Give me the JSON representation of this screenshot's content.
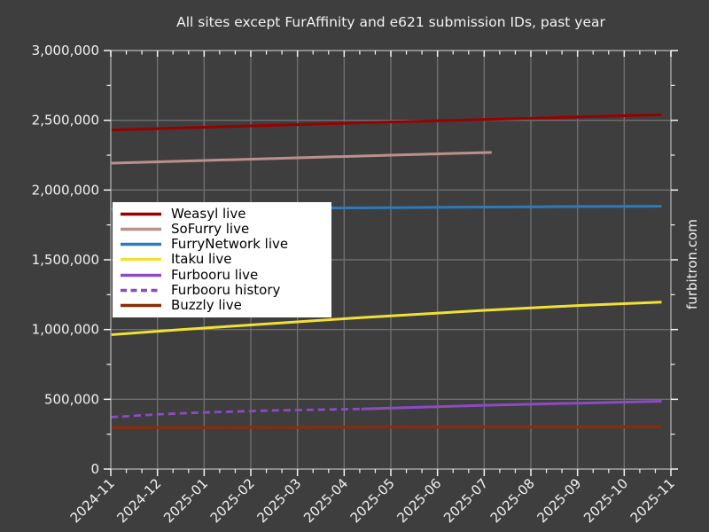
{
  "figure": {
    "watermark": "furbitron.com"
  },
  "colors": {
    "background": "#3E3E3E",
    "grid": "#6F6F6F",
    "spine": "#9B9B9B",
    "tick": "#F5F5F5",
    "text": "#F2F2F2",
    "legend_bg": "#FFFFFF",
    "legend_text": "#000000"
  },
  "chart_data": {
    "type": "line",
    "title": "All sites except FurAffinity and e621 submission IDs, past year",
    "x_note": "x values of points are month offsets from 2024-11 (0 = 2024-11, 12 = 2025-11)",
    "x_tick_labels": [
      "2024-11",
      "2024-12",
      "2025-01",
      "2025-02",
      "2025-03",
      "2025-04",
      "2025-05",
      "2025-06",
      "2025-07",
      "2025-08",
      "2025-09",
      "2025-10",
      "2025-11"
    ],
    "x_minor_ticks_per_interval": 2,
    "y_tick_values": [
      0,
      500000,
      1000000,
      1500000,
      2000000,
      2500000,
      3000000
    ],
    "y_tick_labels": [
      "0",
      "500,000",
      "1,000,000",
      "1,500,000",
      "2,000,000",
      "2,500,000",
      "3,000,000"
    ],
    "y_minor_step": 250000,
    "ylim": [
      0,
      3000000
    ],
    "xlim_months": [
      0,
      12
    ],
    "grid": true,
    "legend_position": "upper left inside plot",
    "series": [
      {
        "name": "Weasyl live",
        "color": "#990000",
        "style": "solid",
        "width": 3,
        "points": [
          [
            0,
            2430000
          ],
          [
            2,
            2450000
          ],
          [
            4,
            2469000
          ],
          [
            6,
            2488000
          ],
          [
            8,
            2506000
          ],
          [
            10,
            2524000
          ],
          [
            11.8,
            2540000
          ]
        ]
      },
      {
        "name": "SoFurry live",
        "color": "#BD8F8E",
        "style": "solid",
        "width": 3,
        "points": [
          [
            0,
            2193000
          ],
          [
            2,
            2212000
          ],
          [
            4,
            2231000
          ],
          [
            6,
            2250000
          ],
          [
            8.16,
            2270000
          ]
        ]
      },
      {
        "name": "FurryNetwork live",
        "color": "#2B7BBC",
        "style": "solid",
        "width": 3,
        "points": [
          [
            0,
            1862000
          ],
          [
            3,
            1868000
          ],
          [
            6,
            1874000
          ],
          [
            9,
            1880000
          ],
          [
            11.8,
            1884000
          ]
        ]
      },
      {
        "name": "Itaku live",
        "color": "#F2E035",
        "style": "solid",
        "width": 3,
        "points": [
          [
            0,
            963000
          ],
          [
            1.5,
            1000000
          ],
          [
            3,
            1033000
          ],
          [
            5.2,
            1082000
          ],
          [
            8,
            1138000
          ],
          [
            10,
            1172000
          ],
          [
            11.8,
            1197000
          ]
        ]
      },
      {
        "name": "Furbooru live",
        "color": "#8B4BC4",
        "style": "solid",
        "width": 3,
        "points": [
          [
            5.37,
            431000
          ],
          [
            8,
            457000
          ],
          [
            10,
            472000
          ],
          [
            11.8,
            486000
          ]
        ]
      },
      {
        "name": "Furbooru history",
        "color": "#8B4BC4",
        "style": "dashed",
        "width": 2.8,
        "points": [
          [
            0,
            372000
          ],
          [
            1,
            392000
          ],
          [
            2,
            406000
          ],
          [
            3.5,
            420000
          ],
          [
            5.37,
            431000
          ]
        ]
      },
      {
        "name": "Buzzly live",
        "color": "#8E2B07",
        "style": "solid",
        "width": 3,
        "points": [
          [
            0,
            296000
          ],
          [
            4,
            299000
          ],
          [
            8,
            301000
          ],
          [
            11.8,
            303000
          ]
        ]
      }
    ]
  }
}
